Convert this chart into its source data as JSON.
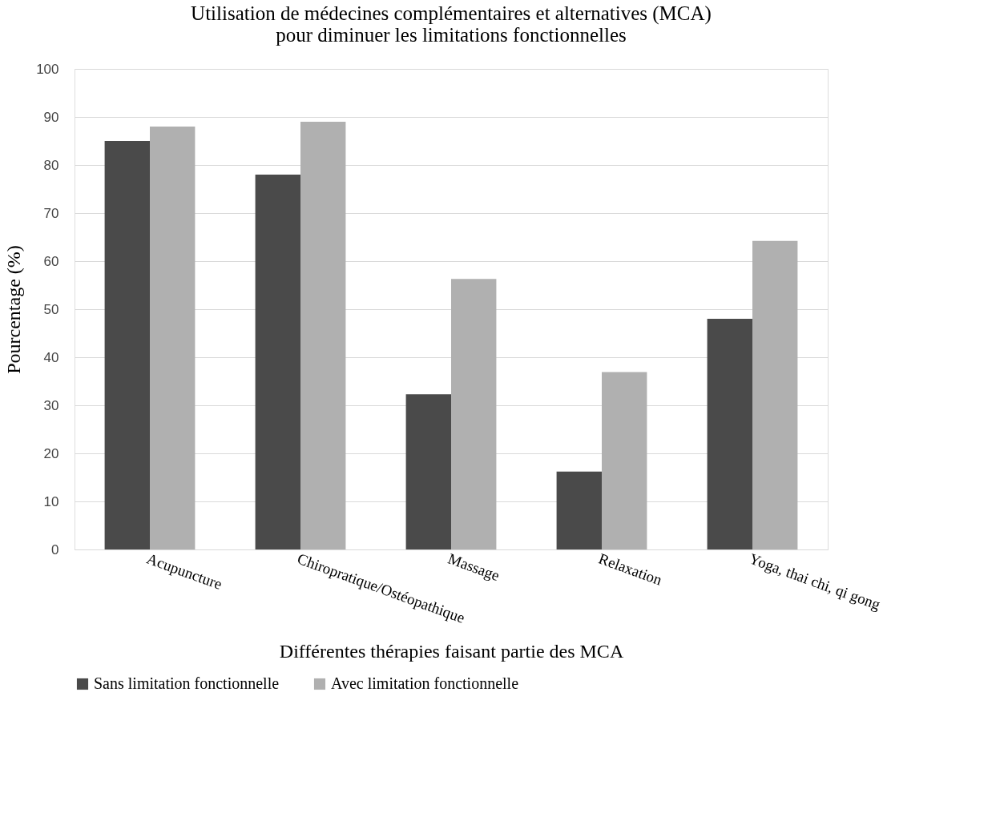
{
  "chart_data": {
    "type": "bar",
    "title": "Utilisation de médecines complémentaires et alternatives (MCA)\npour diminuer les limitations fonctionnelles",
    "xlabel": "Différentes thérapies faisant partie des MCA",
    "ylabel": "Pourcentage (%)",
    "categories": [
      "Acupuncture",
      "Chiropratique/Ostéopathique",
      "Massage",
      "Relaxation",
      "Yoga, thai chi, qi gong"
    ],
    "series": [
      {
        "name": "Sans limitation fonctionnelle",
        "color": "#4a4a4a",
        "values": [
          85,
          78,
          32.3,
          16.2,
          48
        ]
      },
      {
        "name": "Avec limitation fonctionnelle",
        "color": "#b0b0b0",
        "values": [
          88,
          89,
          56.3,
          36.9,
          64.2
        ]
      }
    ],
    "ylim": [
      0,
      100
    ],
    "yticks": [
      0,
      10,
      20,
      30,
      40,
      50,
      60,
      70,
      80,
      90,
      100
    ],
    "grid": "y",
    "legend": "bottom"
  }
}
